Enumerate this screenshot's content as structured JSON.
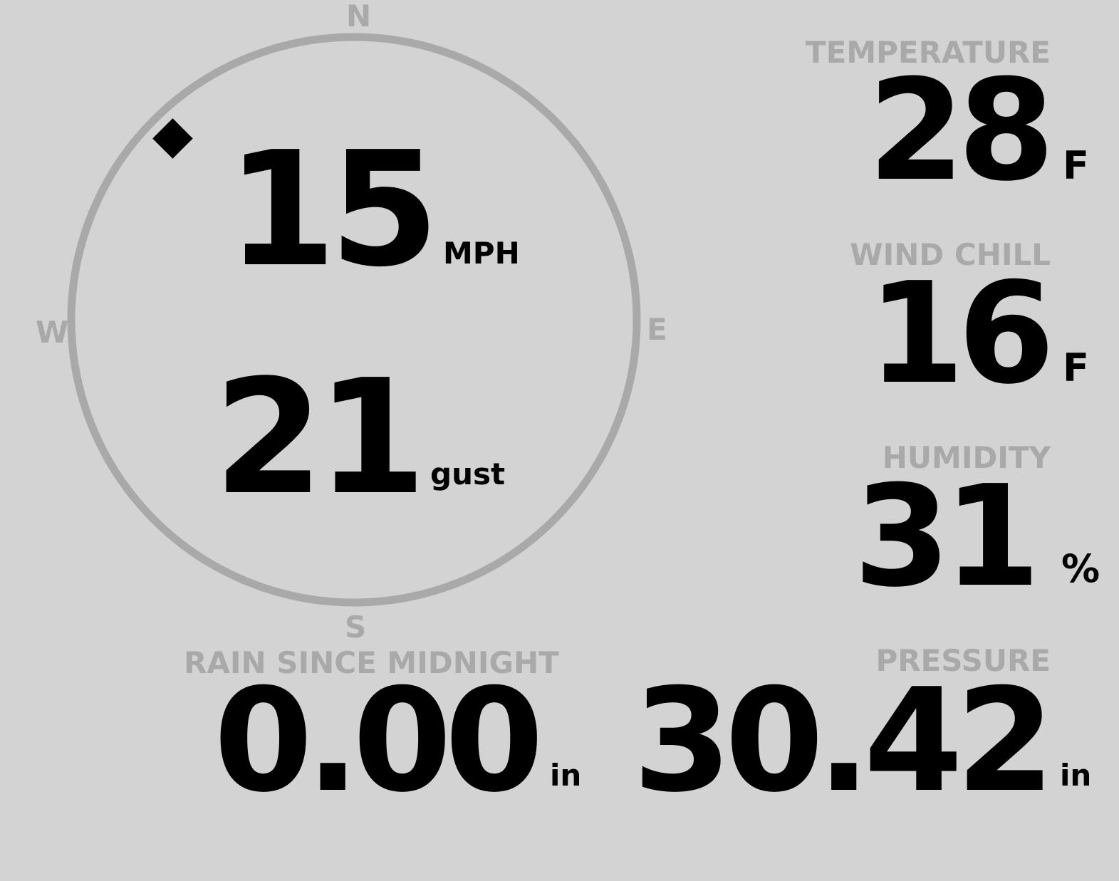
{
  "compass": {
    "N": "N",
    "E": "E",
    "S": "S",
    "W": "W",
    "direction_deg": 315,
    "ring_color": "#a9a9a9",
    "marker_color": "#000000"
  },
  "wind": {
    "speed": "15",
    "speed_unit": "MPH",
    "gust": "21",
    "gust_unit": "gust"
  },
  "temperature": {
    "label": "TEMPERATURE",
    "value": "28",
    "unit": "F"
  },
  "wind_chill": {
    "label": "WIND CHILL",
    "value": "16",
    "unit": "F"
  },
  "humidity": {
    "label": "HUMIDITY",
    "value": "31",
    "unit": "%"
  },
  "rain": {
    "label": "RAIN SINCE MIDNIGHT",
    "value": "0.00",
    "unit": "in"
  },
  "pressure": {
    "label": "PRESSURE",
    "value": "30.42",
    "unit": "in"
  },
  "colors": {
    "background": "#d3d3d3",
    "label": "#a9a9a9",
    "value": "#000000"
  }
}
